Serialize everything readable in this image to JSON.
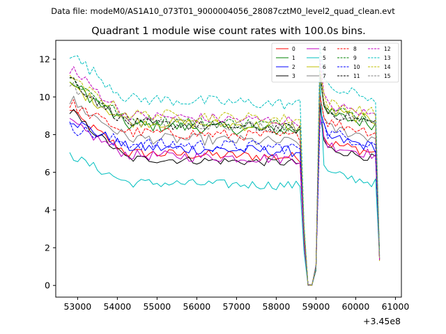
{
  "chart_data": {
    "type": "line",
    "suptitle": "Data file: modeM0/AS1A10_073T01_9000004056_28087cztM0_level2_quad_clean.evt",
    "title": "Quadrant 1 module wise count rates with 100.0s bins.",
    "xlabel": "",
    "ylabel": "",
    "x_offset_label": "+3.45e8",
    "xlim": [
      52450,
      61150
    ],
    "ylim": [
      -0.62,
      13.0
    ],
    "xticks": [
      53000,
      54000,
      55000,
      56000,
      57000,
      58000,
      59000,
      60000,
      61000
    ],
    "xtick_labels": [
      "53000",
      "54000",
      "55000",
      "56000",
      "57000",
      "58000",
      "59000",
      "60000",
      "61000"
    ],
    "yticks": [
      0,
      2,
      4,
      6,
      8,
      10,
      12
    ],
    "ytick_labels": [
      "0",
      "2",
      "4",
      "6",
      "8",
      "10",
      "12"
    ],
    "legend_position": "upper right",
    "legend_columns": 4,
    "x_start": 52800,
    "x_step": 100,
    "gap_segments": [
      {
        "start": 58700,
        "end": 59150
      },
      {
        "start": 60550,
        "end": 60650
      }
    ],
    "series": [
      {
        "name": "0",
        "color": "#ff0000",
        "dash": "solid",
        "level": 7.1,
        "start": 9.2,
        "noise": 0.28,
        "drop": 0.3
      },
      {
        "name": "1",
        "color": "#008000",
        "dash": "solid",
        "level": 8.6,
        "start": 10.8,
        "noise": 0.32,
        "drop": 0.4
      },
      {
        "name": "2",
        "color": "#0000ff",
        "dash": "solid",
        "level": 7.4,
        "start": 8.8,
        "noise": 0.3,
        "drop": 0.3
      },
      {
        "name": "3",
        "color": "#000000",
        "dash": "solid",
        "level": 6.8,
        "start": 9.2,
        "noise": 0.22,
        "drop": 0.3
      },
      {
        "name": "4",
        "color": "#bf00bf",
        "dash": "solid",
        "level": 7.0,
        "start": 8.6,
        "noise": 0.28,
        "drop": 0.3
      },
      {
        "name": "5",
        "color": "#00bfbf",
        "dash": "solid",
        "level": 5.5,
        "start": 6.9,
        "noise": 0.25,
        "drop": 0.2
      },
      {
        "name": "6",
        "color": "#bfbf00",
        "dash": "solid",
        "level": 8.8,
        "start": 10.6,
        "noise": 0.3,
        "drop": 0.4
      },
      {
        "name": "7",
        "color": "#808080",
        "dash": "solid",
        "level": 7.9,
        "start": 9.8,
        "noise": 0.3,
        "drop": 0.3
      },
      {
        "name": "8",
        "color": "#ff0000",
        "dash": "dashed",
        "level": 8.2,
        "start": 9.6,
        "noise": 0.3,
        "drop": 0.3
      },
      {
        "name": "9",
        "color": "#008000",
        "dash": "dashed",
        "level": 8.9,
        "start": 11.0,
        "noise": 0.3,
        "drop": 0.4
      },
      {
        "name": "10",
        "color": "#0000ff",
        "dash": "dashed",
        "level": 7.6,
        "start": 8.4,
        "noise": 0.35,
        "drop": 0.3
      },
      {
        "name": "11",
        "color": "#000000",
        "dash": "dashed",
        "level": 8.7,
        "start": 10.9,
        "noise": 0.28,
        "drop": 0.4
      },
      {
        "name": "12",
        "color": "#bf00bf",
        "dash": "dashed",
        "level": 9.1,
        "start": 11.5,
        "noise": 0.3,
        "drop": 0.4
      },
      {
        "name": "13",
        "color": "#00bfbf",
        "dash": "dashed",
        "level": 10.0,
        "start": 12.3,
        "noise": 0.32,
        "drop": 0.4
      },
      {
        "name": "14",
        "color": "#bfbf00",
        "dash": "dashed",
        "level": 9.2,
        "start": 10.9,
        "noise": 0.3,
        "drop": 0.4
      },
      {
        "name": "15",
        "color": "#808080",
        "dash": "dashed",
        "level": 8.8,
        "start": 10.5,
        "noise": 0.28,
        "drop": 0.4
      }
    ]
  }
}
